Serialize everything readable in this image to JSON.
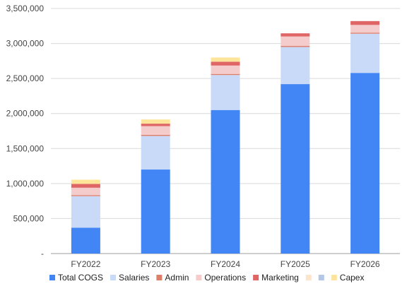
{
  "chart_data": {
    "type": "bar",
    "stacked": true,
    "title": "",
    "xlabel": "",
    "ylabel": "",
    "categories": [
      "FY2022",
      "FY2023",
      "FY2024",
      "FY2025",
      "FY2026"
    ],
    "ylim": [
      0,
      3500000
    ],
    "yticks": [
      0,
      500000,
      1000000,
      1500000,
      2000000,
      2500000,
      3000000,
      3500000
    ],
    "ytick_labels": [
      "-",
      "500,000",
      "1,000,000",
      "1,500,000",
      "2,000,000",
      "2,500,000",
      "3,000,000",
      "3,500,000"
    ],
    "grid": true,
    "legend_position": "bottom",
    "series": [
      {
        "name": "Total COGS",
        "color": "#4285f4",
        "values": [
          370000,
          1200000,
          2050000,
          2420000,
          2580000
        ]
      },
      {
        "name": "Salaries",
        "color": "#c9daf8",
        "values": [
          450000,
          480000,
          500000,
          530000,
          560000
        ]
      },
      {
        "name": "Admin",
        "color": "#dd7e6b",
        "values": [
          15000,
          15000,
          15000,
          15000,
          15000
        ]
      },
      {
        "name": "Operations",
        "color": "#f4cccc",
        "values": [
          105000,
          125000,
          120000,
          135000,
          110000
        ]
      },
      {
        "name": "Marketing",
        "color": "#e06666",
        "values": [
          55000,
          35000,
          55000,
          45000,
          55000
        ]
      },
      {
        "name": "",
        "color": "#fce5cd",
        "values": [
          0,
          0,
          0,
          0,
          0
        ]
      },
      {
        "name": "",
        "color": "#b4c7e7",
        "values": [
          0,
          0,
          0,
          0,
          0
        ]
      },
      {
        "name": "Capex",
        "color": "#ffe599",
        "values": [
          60000,
          60000,
          60000,
          0,
          0
        ]
      }
    ]
  }
}
